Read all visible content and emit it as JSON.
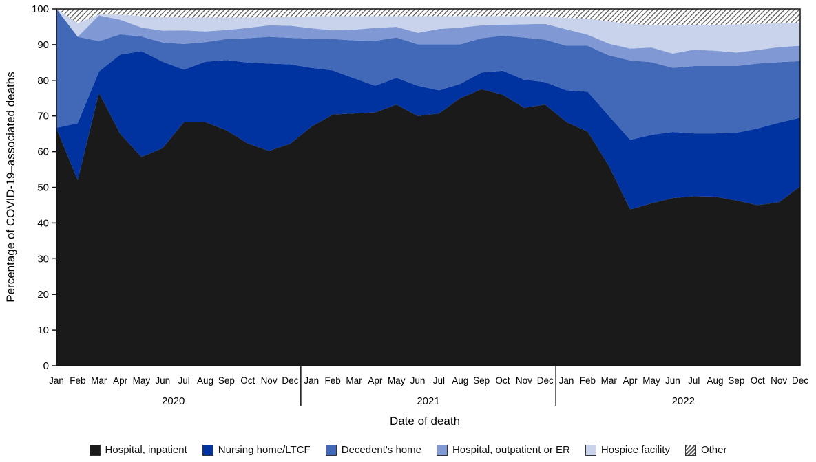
{
  "chart_data": {
    "type": "area",
    "stacked": true,
    "title": "",
    "xlabel": "Date of death",
    "ylabel": "Percentage of COVID-19–associated deaths",
    "ylim": [
      0,
      100
    ],
    "yticks": [
      0,
      10,
      20,
      30,
      40,
      50,
      60,
      70,
      80,
      90,
      100
    ],
    "grid": false,
    "legend_position": "bottom",
    "years": [
      "2020",
      "2021",
      "2022"
    ],
    "months": [
      "Jan",
      "Feb",
      "Mar",
      "Apr",
      "May",
      "Jun",
      "Jul",
      "Aug",
      "Sep",
      "Oct",
      "Nov",
      "Dec"
    ],
    "series": [
      {
        "name": "Hospital, inpatient",
        "color": "#1a1a1a",
        "values": [
          66.5,
          52,
          76.5,
          65,
          58.5,
          61,
          68.3,
          68.3,
          66,
          62.3,
          60.2,
          62.2,
          67,
          70.4,
          70.7,
          71,
          73.2,
          70,
          70.7,
          75,
          77.5,
          76,
          72.3,
          73.2,
          68.3,
          65.6,
          56,
          43.8,
          45.5,
          47,
          47.5,
          47.4,
          46.3,
          45,
          45.8,
          50.3
        ]
      },
      {
        "name": "Nursing home/LTCF",
        "color": "#0033a0",
        "values": [
          0.2,
          16,
          6,
          22.2,
          29.7,
          24.2,
          14.7,
          16.9,
          19.7,
          22.7,
          24.5,
          22.3,
          16.5,
          12.4,
          9.9,
          7.5,
          7.5,
          8.5,
          6.5,
          4,
          4.7,
          6.7,
          7.9,
          6.3,
          8.9,
          11.2,
          14,
          19.5,
          19.2,
          18.5,
          17.6,
          17.7,
          19,
          21.5,
          22.3,
          19.2
        ]
      },
      {
        "name": "Decedent's home",
        "color": "#4169b8",
        "values": [
          33.3,
          24.2,
          8.5,
          5.7,
          4.1,
          5.4,
          7.2,
          5.5,
          5.9,
          6.8,
          7.5,
          7.4,
          8.2,
          8.8,
          10.6,
          12.6,
          11.3,
          11.6,
          12.9,
          11.1,
          9.6,
          9.8,
          11.8,
          11.9,
          12.5,
          12.9,
          17,
          22.3,
          20.4,
          18,
          18.9,
          18.9,
          18.7,
          18.2,
          17,
          15.9
        ]
      },
      {
        "name": "Hospital, outpatient or ER",
        "color": "#8099d4",
        "values": [
          0,
          0,
          7.2,
          4.1,
          2.5,
          3.3,
          3.8,
          3,
          2.5,
          2.9,
          3.2,
          3.4,
          2.9,
          2.4,
          3,
          3.6,
          3,
          3.2,
          4.3,
          4.7,
          3.6,
          3.1,
          3.7,
          4.4,
          4.6,
          3.1,
          3.3,
          3.3,
          4.1,
          4,
          4.6,
          4.3,
          3.8,
          3.8,
          4.2,
          4.3
        ]
      },
      {
        "name": "Hospice facility",
        "color": "#c9d4ec",
        "values": [
          0,
          3.8,
          0.3,
          1.4,
          3.2,
          3.8,
          3.6,
          3.9,
          3.5,
          2.9,
          2.3,
          2.5,
          3.4,
          4,
          3.8,
          3.3,
          3,
          4.7,
          3.6,
          3.2,
          2.6,
          2.4,
          2.3,
          2.2,
          3.2,
          4.5,
          6.2,
          6.9,
          6.3,
          8,
          7,
          7.3,
          7.9,
          7.3,
          6.7,
          6.5
        ]
      },
      {
        "name": "Other",
        "color": "hatched",
        "values": [
          0,
          4,
          1.5,
          1.6,
          2,
          2.3,
          2.4,
          2.4,
          2.4,
          2.4,
          2.3,
          2.2,
          2,
          2,
          2,
          2,
          2,
          2,
          2,
          2,
          2,
          2,
          2,
          2,
          2.5,
          2.7,
          3.5,
          4.2,
          4.5,
          4.5,
          4.4,
          4.4,
          4.3,
          4.2,
          4,
          3.8
        ]
      }
    ]
  }
}
